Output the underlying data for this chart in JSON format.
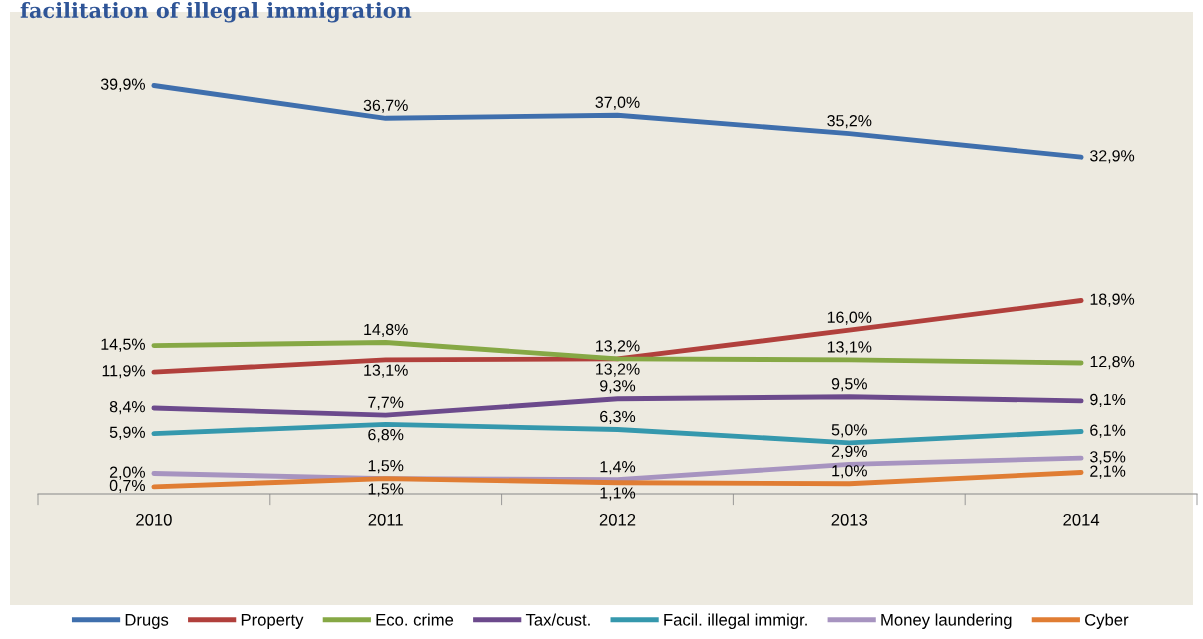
{
  "chart_data": {
    "type": "line",
    "title": "facilitation of illegal immigration",
    "categories": [
      "2010",
      "2011",
      "2012",
      "2013",
      "2014"
    ],
    "tick_labels": "x",
    "legend": "bottom",
    "grid": false,
    "marker": "none",
    "line_style": "solid",
    "series": [
      {
        "name": "Drugs",
        "color": "#3f6fad",
        "values": [
          39.9,
          36.7,
          37.0,
          35.2,
          32.9
        ],
        "value_labels": [
          "39,9%",
          "36,7%",
          "37,0%",
          "35,2%",
          "32,9%"
        ]
      },
      {
        "name": "Property",
        "color": "#b1403c",
        "values": [
          11.9,
          13.1,
          13.2,
          16.0,
          18.9
        ],
        "value_labels": [
          "11,9%",
          "13,1%",
          "13,2%",
          "16,0%",
          "18,9%"
        ]
      },
      {
        "name": "Eco. crime",
        "color": "#86a845",
        "values": [
          14.5,
          14.8,
          13.2,
          13.1,
          12.8
        ],
        "value_labels": [
          "14,5%",
          "14,8%",
          "13,2%",
          "13,1%",
          "12,8%"
        ]
      },
      {
        "name": "Tax/cust.",
        "color": "#6c4a8c",
        "values": [
          8.4,
          7.7,
          9.3,
          9.5,
          9.1
        ],
        "value_labels": [
          "8,4%",
          "7,7%",
          "9,3%",
          "9,5%",
          "9,1%"
        ]
      },
      {
        "name": "Facil. illegal immigr.",
        "color": "#3598ad",
        "values": [
          5.9,
          6.8,
          6.3,
          5.0,
          6.1
        ],
        "value_labels": [
          "5,9%",
          "6,8%",
          "6,3%",
          "5,0%",
          "6,1%"
        ]
      },
      {
        "name": "Money laundering",
        "color": "#a794c0",
        "values": [
          2.0,
          1.5,
          1.4,
          2.9,
          3.5
        ],
        "value_labels": [
          "2,0%",
          "1,5%",
          "1,4%",
          "2,9%",
          "3,5%"
        ]
      },
      {
        "name": "Cyber",
        "color": "#e07d33",
        "values": [
          0.7,
          1.5,
          1.1,
          1.0,
          2.1
        ],
        "value_labels": [
          "0,7%",
          "1,5%",
          "1,1%",
          "1,0%",
          "2,1%"
        ]
      }
    ]
  }
}
